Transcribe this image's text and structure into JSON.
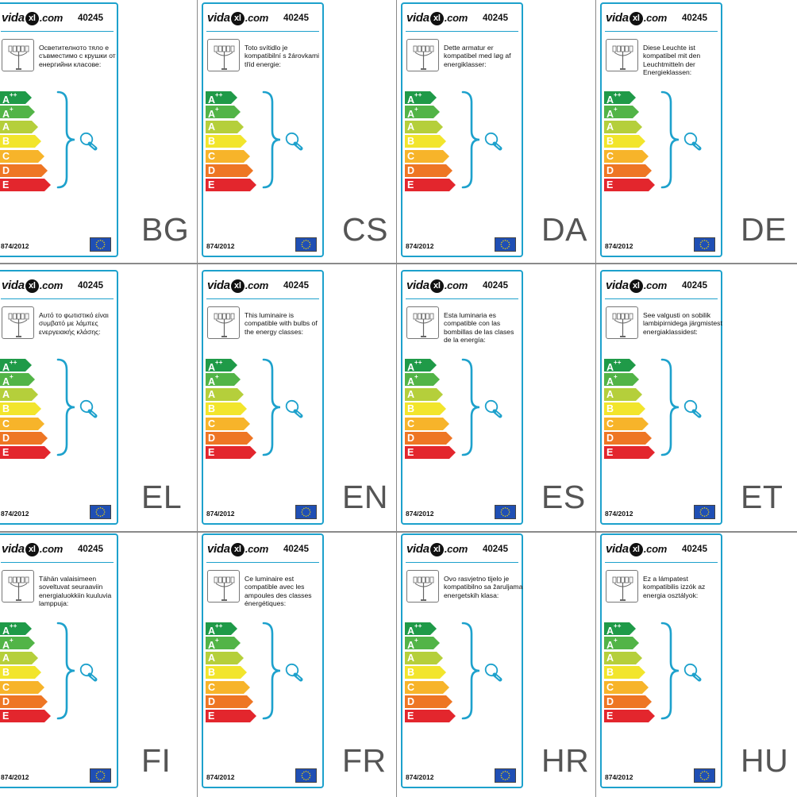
{
  "product_code": "40245",
  "regulation": "874/2012",
  "logo": {
    "left": "vida",
    "mark": "xl",
    "right": ".com"
  },
  "energy_classes": [
    {
      "letter": "A",
      "sup": "++",
      "color": "#1f9a48"
    },
    {
      "letter": "A",
      "sup": "+",
      "color": "#52b447"
    },
    {
      "letter": "A",
      "sup": "",
      "color": "#b5cf3b"
    },
    {
      "letter": "B",
      "sup": "",
      "color": "#f2e52c"
    },
    {
      "letter": "C",
      "sup": "",
      "color": "#f7b42a"
    },
    {
      "letter": "D",
      "sup": "",
      "color": "#ee7624"
    },
    {
      "letter": "E",
      "sup": "",
      "color": "#e3262d"
    }
  ],
  "colors": {
    "accent": "#1da1cc",
    "eu_flag": "#1f4fb5",
    "eu_stars": "#f5d300"
  },
  "icons": {
    "lamp": "lamp-icon",
    "bulb": "bulb-icon",
    "bracket": "bracket-icon",
    "eu_flag": "eu-flag-icon"
  },
  "labels": [
    {
      "lang": "BG",
      "text": "Осветителното тяло е съвместимо с крушки от енергийни класове:"
    },
    {
      "lang": "CS",
      "text": "Toto svítidlo je kompatibilní s žárovkami tříd energie:"
    },
    {
      "lang": "DA",
      "text": "Dette armatur er kompatibel med løg af energiklasser:"
    },
    {
      "lang": "DE",
      "text": "Diese Leuchte ist kompatibel mit den Leuchtmitteln der Energieklassen:"
    },
    {
      "lang": "EL",
      "text": "Αυτό το φωτιστικό είναι συμβατό με λάμπες ενεργειακής κλάσης:"
    },
    {
      "lang": "EN",
      "text": "This luminaire is compatible with bulbs of the energy classes:"
    },
    {
      "lang": "ES",
      "text": "Esta luminaria es compatible con las bombillas de las clases de la energía:"
    },
    {
      "lang": "ET",
      "text": "See valgusti on sobilik lambipirnidega järgmistest energiaklassidest:"
    },
    {
      "lang": "FI",
      "text": "Tähän valaisimeen soveltuvat seuraaviin energialuokkiin kuuluvia lamppuja:"
    },
    {
      "lang": "FR",
      "text": "Ce luminaire est compatible avec les ampoules des classes énergétiques:"
    },
    {
      "lang": "HR",
      "text": "Ovo rasvjetno tijelo je kompatibilno sa žaruljama energetskih klasa:"
    },
    {
      "lang": "HU",
      "text": "Ez a lámpatest kompatibilis izzók az energia osztályok:"
    }
  ]
}
